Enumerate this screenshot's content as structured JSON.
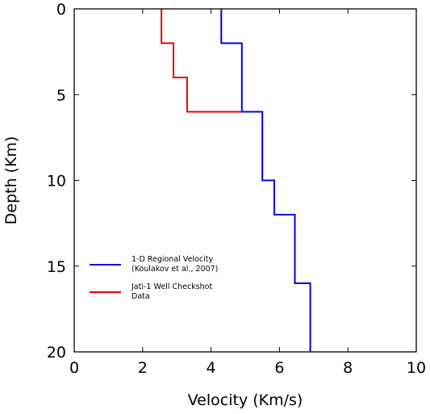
{
  "chart_data": {
    "type": "line",
    "xlabel": "Velocity (Km/s)",
    "ylabel": "Depth (Km)",
    "xlim": [
      0,
      10
    ],
    "ylim": [
      20,
      0
    ],
    "y_inverted": true,
    "grid": false,
    "legend_position": "lower-left",
    "x_ticks": [
      "0",
      "2",
      "4",
      "6",
      "8",
      "10"
    ],
    "y_ticks": [
      "0",
      "5",
      "10",
      "15",
      "20"
    ],
    "series": [
      {
        "name_lines": [
          "1-D Regional Velocity",
          "(Koulakov et al., 2007)"
        ],
        "color": "#0000dd",
        "x": [
          4.3,
          4.3,
          4.9,
          4.9,
          5.5,
          5.5,
          5.85,
          5.85,
          6.45,
          6.45,
          6.9,
          6.9
        ],
        "y": [
          0,
          2,
          2,
          6,
          6,
          10,
          10,
          12,
          12,
          16,
          16,
          20
        ]
      },
      {
        "name_lines": [
          "Jati-1 Well Checkshot",
          "Data"
        ],
        "color": "#ee0000",
        "x": [
          2.55,
          2.55,
          2.9,
          2.9,
          3.3,
          3.3,
          4.9
        ],
        "y": [
          0,
          2,
          2,
          4,
          4,
          6,
          6
        ]
      }
    ]
  }
}
